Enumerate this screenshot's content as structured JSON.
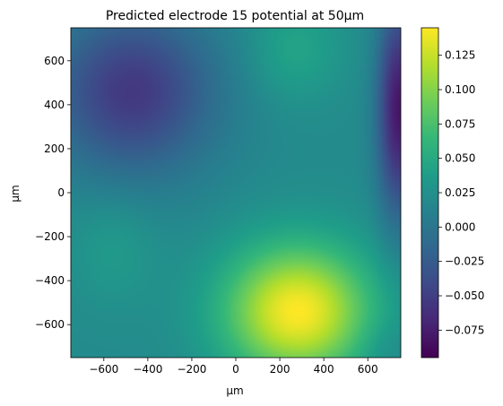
{
  "chart_data": {
    "type": "heatmap",
    "title": "Predicted electrode 15 potential at 50µm",
    "xlabel": "µm",
    "ylabel": "µm",
    "xlim": [
      -750,
      750
    ],
    "ylim": [
      -750,
      750
    ],
    "x_ticks": [
      -600,
      -400,
      -200,
      0,
      200,
      400,
      600
    ],
    "y_ticks": [
      -600,
      -400,
      -200,
      0,
      200,
      400,
      600
    ],
    "x_tick_labels": [
      "−600",
      "−400",
      "−200",
      "0",
      "200",
      "400",
      "600"
    ],
    "y_tick_labels": [
      "−600",
      "−400",
      "−200",
      "0",
      "200",
      "400",
      "600"
    ],
    "colormap": "viridis",
    "value_range": [
      -0.095,
      0.145
    ],
    "colorbar": {
      "ticks": [
        0.125,
        0.1,
        0.075,
        0.05,
        0.025,
        0.0,
        -0.025,
        -0.05,
        -0.075
      ],
      "tick_labels": [
        "0.125",
        "0.100",
        "0.075",
        "0.050",
        "0.025",
        "0.000",
        "−0.025",
        "−0.050",
        "−0.075"
      ]
    },
    "features": [
      {
        "kind": "maximum",
        "x": 280,
        "y": -540,
        "value": 0.145
      },
      {
        "kind": "minimum",
        "x": 720,
        "y": 400,
        "value": -0.095
      },
      {
        "kind": "low-region",
        "x": -480,
        "y": 450,
        "value": -0.05
      }
    ]
  }
}
